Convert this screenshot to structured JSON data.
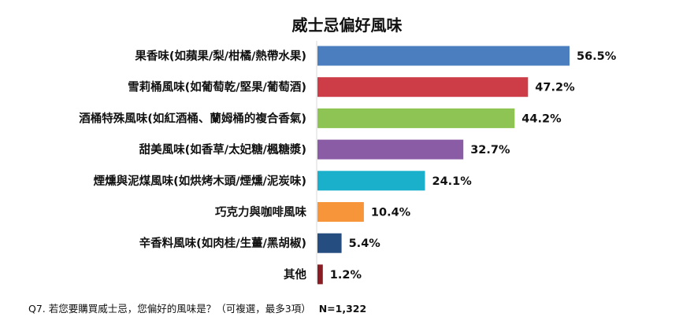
{
  "chart_data": {
    "type": "bar",
    "orientation": "horizontal",
    "title": "威士忌偏好風味",
    "categories": [
      "果香味(如蘋果/梨/柑橘/熱帶水果)",
      "雪莉桶風味(如葡萄乾/堅果/葡萄酒)",
      "酒桶特殊風味(如紅酒桶、蘭姆桶的複合香氣)",
      "甜美風味(如香草/太妃糖/楓糖漿)",
      "煙燻與泥煤風味(如烘烤木頭/煙燻/泥炭味)",
      "巧克力與咖啡風味",
      "辛香料風味(如肉桂/生薑/黑胡椒)",
      "其他"
    ],
    "values": [
      56.5,
      47.2,
      44.2,
      32.7,
      24.1,
      10.4,
      5.4,
      1.2
    ],
    "value_labels": [
      "56.5%",
      "47.2%",
      "44.2%",
      "32.7%",
      "24.1%",
      "10.4%",
      "5.4%",
      "1.2%"
    ],
    "colors": [
      "#4a7ebf",
      "#cc3d47",
      "#8dc454",
      "#8a5ca6",
      "#1ab0cc",
      "#f7953a",
      "#264d80",
      "#8a1d24"
    ],
    "xlim": [
      0,
      60
    ],
    "grid": false,
    "legend": "none"
  },
  "footnote": {
    "question": "Q7. 若您要購買威士忌，您偏好的風味是？（可複選，最多3項）",
    "sample": "N=1,322"
  }
}
